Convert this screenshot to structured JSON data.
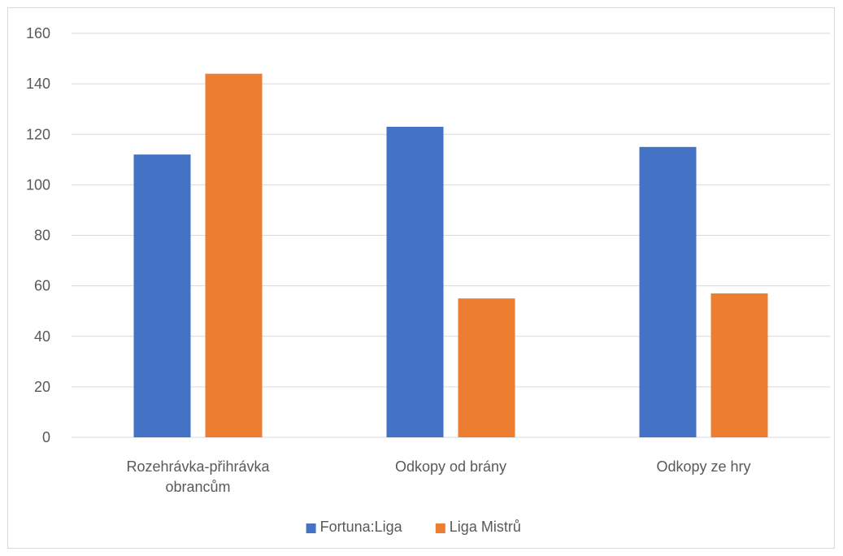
{
  "chart_data": {
    "type": "bar",
    "categories": [
      [
        "Rozehrávka-přihrávka",
        "obrancům"
      ],
      [
        "Odkopy od brány"
      ],
      [
        "Odkopy ze hry"
      ]
    ],
    "series": [
      {
        "name": "Fortuna:Liga",
        "color": "#4472c4",
        "values": [
          112,
          123,
          115
        ]
      },
      {
        "name": "Liga Mistrů",
        "color": "#ed7d31",
        "values": [
          144,
          55,
          57
        ]
      }
    ],
    "ylim": [
      0,
      160
    ],
    "yticks": [
      0,
      20,
      40,
      60,
      80,
      100,
      120,
      140,
      160
    ],
    "grid": true,
    "legend": "bottom",
    "title": "",
    "xlabel": "",
    "ylabel": ""
  }
}
